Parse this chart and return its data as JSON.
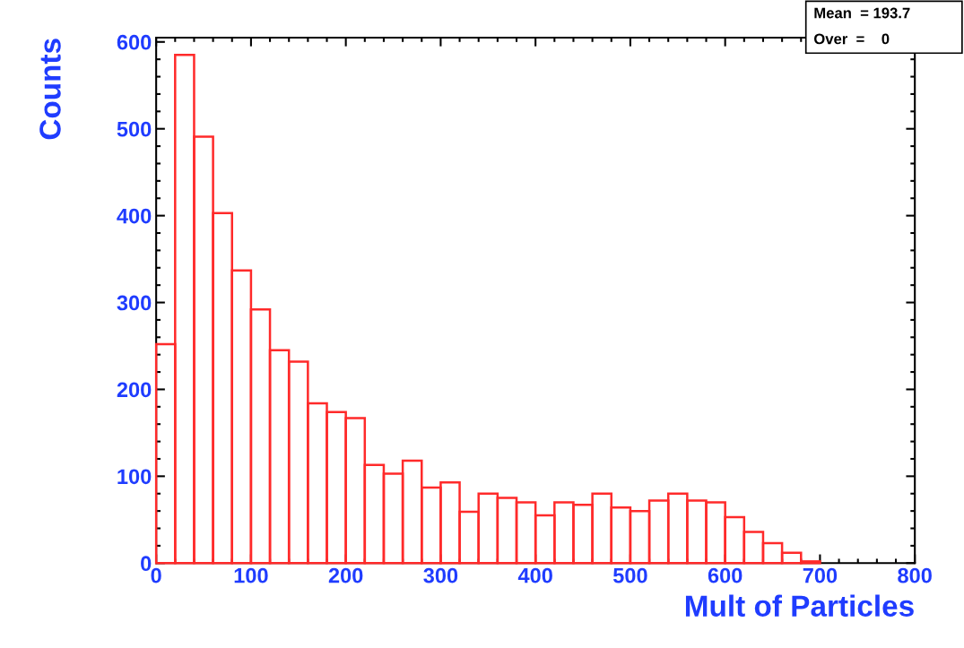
{
  "chart_data": {
    "type": "histogram",
    "xlabel": "Mult of Particles",
    "ylabel": "Counts",
    "bins": [
      0,
      20,
      40,
      60,
      80,
      100,
      120,
      140,
      160,
      180,
      200,
      220,
      240,
      260,
      280,
      300,
      320,
      340,
      360,
      380,
      400,
      420,
      440,
      460,
      480,
      500,
      520,
      540,
      560,
      580,
      600,
      620,
      640,
      660,
      680,
      700
    ],
    "values": [
      252,
      585,
      491,
      403,
      337,
      292,
      245,
      232,
      184,
      174,
      167,
      113,
      103,
      118,
      87,
      93,
      59,
      80,
      75,
      70,
      55,
      70,
      67,
      80,
      64,
      60,
      72,
      80,
      72,
      70,
      53,
      36,
      23,
      12,
      2
    ],
    "color": "#ff2a2a",
    "xlim": [
      0,
      800
    ],
    "xticks": [
      0,
      100,
      200,
      300,
      400,
      500,
      600,
      700,
      800
    ],
    "ylim": [
      0,
      605
    ],
    "yticks": [
      0,
      100,
      200,
      300,
      400,
      500,
      600
    ],
    "grid": false,
    "legend": false,
    "annotations": [
      "Mean  = 193.7",
      "Over  =    0"
    ]
  }
}
